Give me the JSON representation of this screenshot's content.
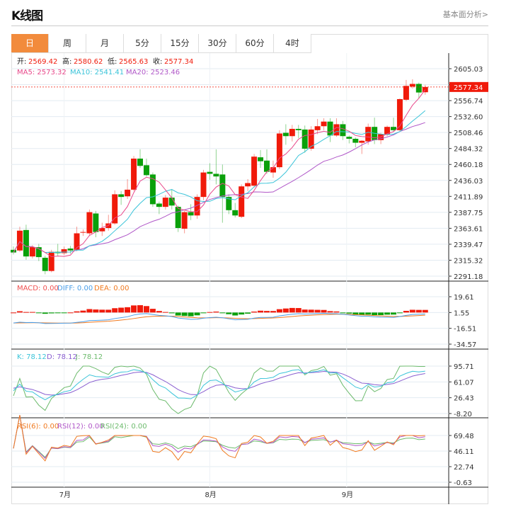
{
  "header": {
    "title": "K线图",
    "link": "基本面分析>"
  },
  "tabs": [
    "日",
    "周",
    "月",
    "5分",
    "15分",
    "30分",
    "60分",
    "4时"
  ],
  "active_tab": 0,
  "legend": {
    "ohlc": [
      {
        "label": "开:",
        "value": "2569.42"
      },
      {
        "label": "高:",
        "value": "2580.62"
      },
      {
        "label": "低:",
        "value": "2565.63"
      },
      {
        "label": "收:",
        "value": "2577.34"
      }
    ],
    "ma": [
      {
        "text": "MA5: 2573.32",
        "color": "#E8488A"
      },
      {
        "text": "MA10: 2541.41",
        "color": "#3BC4D9"
      },
      {
        "text": "MA20: 2523.46",
        "color": "#B057C8"
      }
    ],
    "macd": [
      {
        "text": "MACD: 0.00",
        "color": "#F05050"
      },
      {
        "text": "DIFF: 0.00",
        "color": "#4A9EE8"
      },
      {
        "text": "DEA: 0.00",
        "color": "#F07A20"
      }
    ],
    "kdj": [
      {
        "text": "K: 78.12",
        "color": "#3BC4D9"
      },
      {
        "text": "D: 78.12",
        "color": "#8A5FD0"
      },
      {
        "text": "J: 78.12",
        "color": "#6DBB6D"
      }
    ],
    "rsi": [
      {
        "text": "RSI(6): 0.00",
        "color": "#F07A20"
      },
      {
        "text": "RSI(12): 0.00",
        "color": "#B057C8"
      },
      {
        "text": "RSI(24): 0.00",
        "color": "#6DBB6D"
      }
    ]
  },
  "colors": {
    "up": "#F01A0A",
    "down": "#0AA00A",
    "accent": "#F28B3C"
  },
  "current_price": "2577.34",
  "chart_data": {
    "type": "candlestick",
    "price_axis": {
      "ticks": [
        "2605.03",
        "2580.89",
        "2556.74",
        "2532.60",
        "2508.46",
        "2484.32",
        "2460.18",
        "2436.03",
        "2411.89",
        "2387.75",
        "2363.61",
        "2339.47",
        "2315.32",
        "2291.18"
      ],
      "range": [
        2291.18,
        2605.03
      ]
    },
    "macd_axis": {
      "ticks": [
        "19.61",
        "1.55",
        "-16.51",
        "-34.57"
      ],
      "range": [
        -34.57,
        19.61
      ]
    },
    "kdj_axis": {
      "ticks": [
        "95.71",
        "61.07",
        "26.43",
        "-8.20"
      ],
      "range": [
        -8.2,
        95.71
      ]
    },
    "rsi_axis": {
      "ticks": [
        "69.48",
        "46.11",
        "22.74",
        "-0.63"
      ],
      "range": [
        -0.63,
        69.48
      ]
    },
    "months": [
      {
        "label": "7月",
        "index": 8
      },
      {
        "label": "8月",
        "index": 31
      },
      {
        "label": "9月",
        "index": 52.6
      }
    ],
    "ohlc": [
      [
        2331,
        2336,
        2324,
        2327
      ],
      [
        2330,
        2366,
        2328,
        2360
      ],
      [
        2361,
        2369,
        2316,
        2321
      ],
      [
        2321,
        2338,
        2318,
        2335
      ],
      [
        2335,
        2340,
        2314,
        2320
      ],
      [
        2319,
        2322,
        2294,
        2299
      ],
      [
        2299,
        2331,
        2297,
        2328
      ],
      [
        2328,
        2340,
        2322,
        2326
      ],
      [
        2326,
        2336,
        2323,
        2332
      ],
      [
        2333,
        2337,
        2325,
        2330
      ],
      [
        2331,
        2366,
        2329,
        2356
      ],
      [
        2357,
        2362,
        2352,
        2358
      ],
      [
        2356,
        2392,
        2352,
        2388
      ],
      [
        2386,
        2390,
        2350,
        2358
      ],
      [
        2359,
        2372,
        2352,
        2364
      ],
      [
        2364,
        2384,
        2360,
        2371
      ],
      [
        2371,
        2421,
        2369,
        2415
      ],
      [
        2415,
        2420,
        2399,
        2411
      ],
      [
        2412,
        2438,
        2408,
        2422
      ],
      [
        2422,
        2473,
        2420,
        2469
      ],
      [
        2469,
        2483,
        2455,
        2458
      ],
      [
        2459,
        2469,
        2442,
        2444
      ],
      [
        2445,
        2448,
        2396,
        2400
      ],
      [
        2401,
        2404,
        2385,
        2396
      ],
      [
        2396,
        2414,
        2392,
        2410
      ],
      [
        2410,
        2423,
        2392,
        2398
      ],
      [
        2396,
        2398,
        2358,
        2364
      ],
      [
        2363,
        2390,
        2356,
        2388
      ],
      [
        2388,
        2400,
        2376,
        2383
      ],
      [
        2383,
        2415,
        2378,
        2411
      ],
      [
        2411,
        2452,
        2406,
        2448
      ],
      [
        2449,
        2462,
        2437,
        2446
      ],
      [
        2446,
        2483,
        2430,
        2442
      ],
      [
        2445,
        2460,
        2372,
        2411
      ],
      [
        2411,
        2415,
        2385,
        2391
      ],
      [
        2391,
        2402,
        2380,
        2383
      ],
      [
        2381,
        2430,
        2379,
        2427
      ],
      [
        2427,
        2438,
        2420,
        2432
      ],
      [
        2428,
        2476,
        2425,
        2472
      ],
      [
        2471,
        2482,
        2455,
        2465
      ],
      [
        2466,
        2483,
        2446,
        2449
      ],
      [
        2448,
        2466,
        2440,
        2456
      ],
      [
        2456,
        2512,
        2453,
        2507
      ],
      [
        2508,
        2521,
        2490,
        2503
      ],
      [
        2503,
        2520,
        2495,
        2514
      ],
      [
        2514,
        2520,
        2500,
        2512
      ],
      [
        2513,
        2519,
        2478,
        2484
      ],
      [
        2484,
        2518,
        2481,
        2513
      ],
      [
        2512,
        2529,
        2506,
        2518
      ],
      [
        2518,
        2530,
        2512,
        2525
      ],
      [
        2525,
        2530,
        2494,
        2504
      ],
      [
        2504,
        2530,
        2502,
        2521
      ],
      [
        2521,
        2526,
        2497,
        2503
      ],
      [
        2502,
        2504,
        2492,
        2499
      ],
      [
        2499,
        2501,
        2486,
        2493
      ],
      [
        2493,
        2497,
        2476,
        2496
      ],
      [
        2495,
        2522,
        2490,
        2517
      ],
      [
        2517,
        2531,
        2491,
        2497
      ],
      [
        2497,
        2508,
        2491,
        2506
      ],
      [
        2506,
        2519,
        2503,
        2517
      ],
      [
        2517,
        2531,
        2510,
        2512
      ],
      [
        2512,
        2560,
        2511,
        2559
      ],
      [
        2558,
        2588,
        2556,
        2579
      ],
      [
        2578,
        2589,
        2575,
        2582
      ],
      [
        2582,
        2584,
        2560,
        2569
      ],
      [
        2569.42,
        2580.62,
        2565.63,
        2577.34
      ]
    ]
  }
}
